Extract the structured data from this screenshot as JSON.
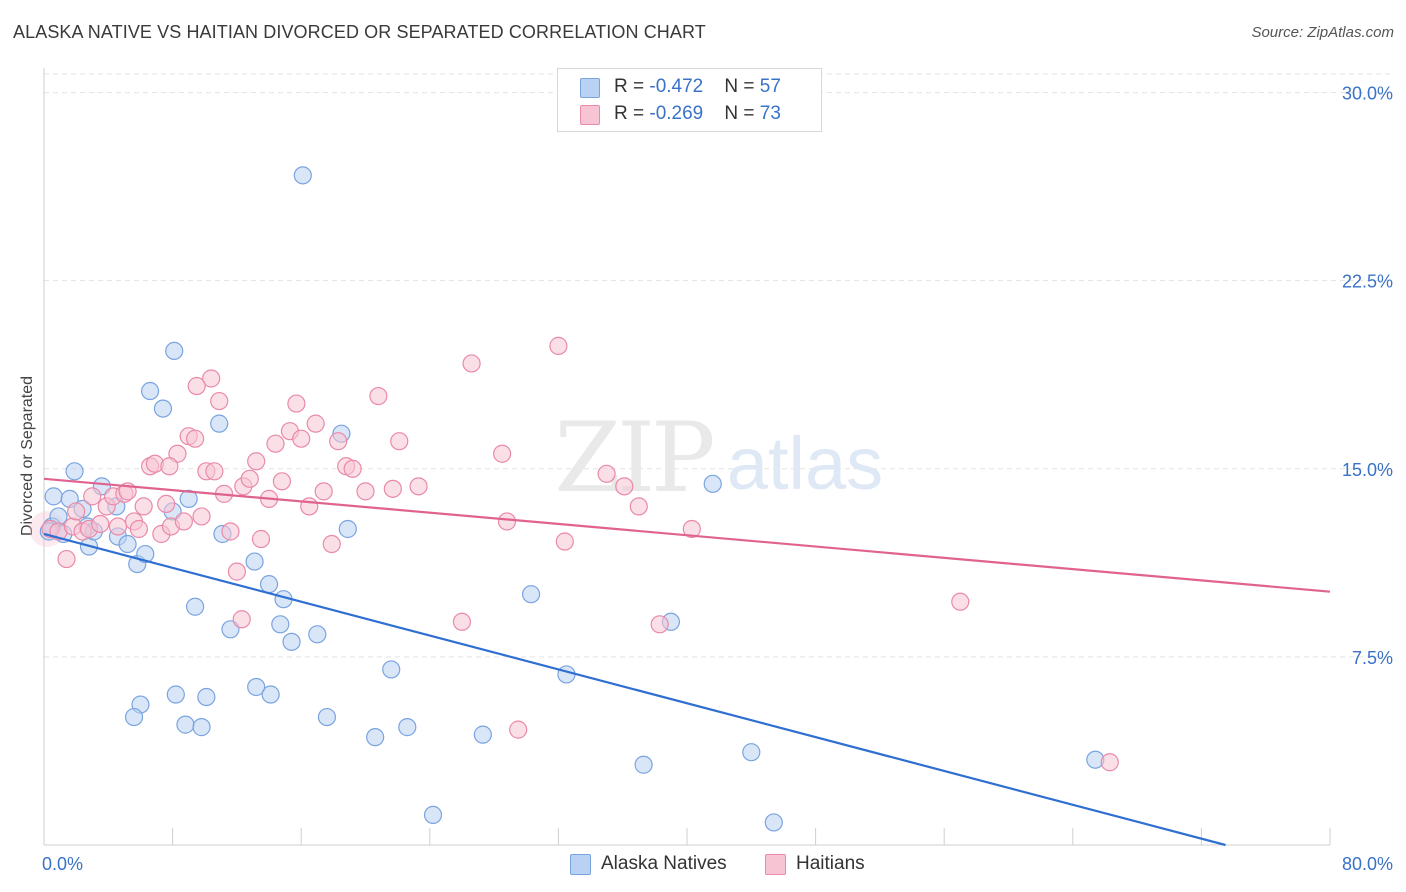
{
  "title": "ALASKA NATIVE VS HAITIAN DIVORCED OR SEPARATED CORRELATION CHART",
  "source": "Source: ZipAtlas.com",
  "watermark": {
    "zip": "ZIP",
    "atlas": "atlas"
  },
  "legend_top": [
    {
      "r_label": "R = ",
      "r_value": "-0.472",
      "n_label": "N = ",
      "n_value": "57"
    },
    {
      "r_label": "R = ",
      "r_value": "-0.269",
      "n_label": "N = ",
      "n_value": "73"
    }
  ],
  "colors": {
    "alaska_fill": "#b9d1f3",
    "alaska_stroke": "#7aa4e0",
    "alaska_line": "#2f6fd1",
    "haitian_fill": "#f7c4d4",
    "haitian_stroke": "#e98aa9",
    "haitian_line": "#e0628e",
    "tick_label": "#3a72c8",
    "grid": "#e3e3e3"
  },
  "chart_data": {
    "type": "scatter",
    "title": "ALASKA NATIVE VS HAITIAN DIVORCED OR SEPARATED CORRELATION CHART",
    "xlabel": "",
    "ylabel": "Divorced or Separated",
    "xlim": [
      0,
      80
    ],
    "ylim": [
      0,
      30.9
    ],
    "x_tick_labels": [
      "0.0%",
      "80.0%"
    ],
    "y_ticks": [
      7.5,
      15.0,
      22.5,
      30.0
    ],
    "y_tick_labels": [
      "7.5%",
      "15.0%",
      "22.5%",
      "30.0%"
    ],
    "grid": true,
    "legend_placement": "top-center and bottom",
    "series": [
      {
        "name": "Alaska Natives",
        "r": -0.472,
        "n": 57,
        "trend": {
          "x0": 0,
          "y0": 12.4,
          "x1": 73.5,
          "y1": 0
        },
        "points": [
          [
            0.5,
            12.7
          ],
          [
            0.6,
            13.9
          ],
          [
            0.9,
            13.1
          ],
          [
            1.2,
            12.4
          ],
          [
            1.6,
            13.8
          ],
          [
            1.9,
            14.9
          ],
          [
            2.4,
            13.4
          ],
          [
            2.7,
            12.7
          ],
          [
            2.8,
            11.9
          ],
          [
            3.1,
            12.5
          ],
          [
            3.6,
            14.3
          ],
          [
            4.5,
            13.5
          ],
          [
            4.6,
            12.3
          ],
          [
            5.2,
            12.0
          ],
          [
            5.8,
            11.2
          ],
          [
            6.3,
            11.6
          ],
          [
            6.6,
            18.1
          ],
          [
            7.4,
            17.4
          ],
          [
            8.0,
            13.3
          ],
          [
            8.1,
            19.7
          ],
          [
            9.0,
            13.8
          ],
          [
            9.4,
            9.5
          ],
          [
            10.9,
            16.8
          ],
          [
            11.1,
            12.4
          ],
          [
            11.6,
            8.6
          ],
          [
            13.1,
            11.3
          ],
          [
            14.0,
            10.4
          ],
          [
            14.7,
            8.8
          ],
          [
            14.9,
            9.8
          ],
          [
            15.4,
            8.1
          ],
          [
            16.1,
            26.7
          ],
          [
            17.0,
            8.4
          ],
          [
            18.5,
            16.4
          ],
          [
            18.9,
            12.6
          ],
          [
            6.0,
            5.6
          ],
          [
            5.6,
            5.1
          ],
          [
            8.2,
            6.0
          ],
          [
            8.8,
            4.8
          ],
          [
            9.8,
            4.7
          ],
          [
            10.1,
            5.9
          ],
          [
            13.2,
            6.3
          ],
          [
            14.1,
            6.0
          ],
          [
            17.6,
            5.1
          ],
          [
            20.6,
            4.3
          ],
          [
            21.6,
            7.0
          ],
          [
            22.6,
            4.7
          ],
          [
            24.2,
            1.2
          ],
          [
            27.3,
            4.4
          ],
          [
            30.3,
            10.0
          ],
          [
            32.5,
            6.8
          ],
          [
            37.3,
            3.2
          ],
          [
            39.0,
            8.9
          ],
          [
            41.6,
            14.4
          ],
          [
            44.0,
            3.7
          ],
          [
            45.4,
            0.9
          ],
          [
            65.4,
            3.4
          ],
          [
            0.3,
            12.5
          ]
        ]
      },
      {
        "name": "Haitians",
        "r": -0.269,
        "n": 73,
        "trend": {
          "x0": 0,
          "y0": 14.6,
          "x1": 80,
          "y1": 10.1
        },
        "points": [
          [
            0.4,
            12.6
          ],
          [
            0.9,
            12.5
          ],
          [
            1.4,
            11.4
          ],
          [
            1.8,
            12.7
          ],
          [
            2.4,
            12.5
          ],
          [
            2.8,
            12.6
          ],
          [
            3.5,
            12.8
          ],
          [
            3.9,
            13.5
          ],
          [
            4.3,
            13.9
          ],
          [
            4.6,
            12.7
          ],
          [
            5.0,
            14.0
          ],
          [
            5.2,
            14.1
          ],
          [
            5.6,
            12.9
          ],
          [
            5.9,
            12.6
          ],
          [
            6.2,
            13.5
          ],
          [
            6.6,
            15.1
          ],
          [
            6.9,
            15.2
          ],
          [
            7.3,
            12.4
          ],
          [
            7.6,
            13.6
          ],
          [
            7.9,
            12.7
          ],
          [
            8.3,
            15.6
          ],
          [
            8.7,
            12.9
          ],
          [
            9.0,
            16.3
          ],
          [
            9.4,
            16.2
          ],
          [
            9.8,
            13.1
          ],
          [
            10.1,
            14.9
          ],
          [
            10.4,
            18.6
          ],
          [
            10.9,
            17.7
          ],
          [
            11.2,
            14.0
          ],
          [
            11.6,
            12.5
          ],
          [
            12.0,
            10.9
          ],
          [
            12.4,
            14.3
          ],
          [
            12.8,
            14.6
          ],
          [
            13.2,
            15.3
          ],
          [
            13.5,
            12.2
          ],
          [
            14.0,
            13.8
          ],
          [
            14.4,
            16.0
          ],
          [
            14.8,
            14.5
          ],
          [
            15.3,
            16.5
          ],
          [
            15.7,
            17.6
          ],
          [
            16.0,
            16.2
          ],
          [
            16.5,
            13.5
          ],
          [
            16.9,
            16.8
          ],
          [
            17.4,
            14.1
          ],
          [
            17.9,
            12.0
          ],
          [
            18.3,
            16.1
          ],
          [
            18.8,
            15.1
          ],
          [
            19.2,
            15.0
          ],
          [
            20.0,
            14.1
          ],
          [
            20.8,
            17.9
          ],
          [
            21.7,
            14.2
          ],
          [
            22.1,
            16.1
          ],
          [
            23.3,
            14.3
          ],
          [
            26.0,
            8.9
          ],
          [
            26.6,
            19.2
          ],
          [
            28.5,
            15.6
          ],
          [
            28.8,
            12.9
          ],
          [
            29.5,
            4.6
          ],
          [
            32.0,
            19.9
          ],
          [
            32.4,
            12.1
          ],
          [
            35.0,
            14.8
          ],
          [
            36.1,
            14.3
          ],
          [
            37.0,
            13.5
          ],
          [
            38.3,
            8.8
          ],
          [
            40.3,
            12.6
          ],
          [
            57.0,
            9.7
          ],
          [
            66.3,
            3.3
          ],
          [
            2.0,
            13.3
          ],
          [
            3.0,
            13.9
          ],
          [
            10.6,
            14.9
          ],
          [
            12.3,
            9.0
          ],
          [
            9.5,
            18.3
          ],
          [
            7.8,
            15.1
          ]
        ]
      }
    ]
  },
  "legend_bottom": [
    {
      "label": "Alaska Natives"
    },
    {
      "label": "Haitians"
    }
  ]
}
